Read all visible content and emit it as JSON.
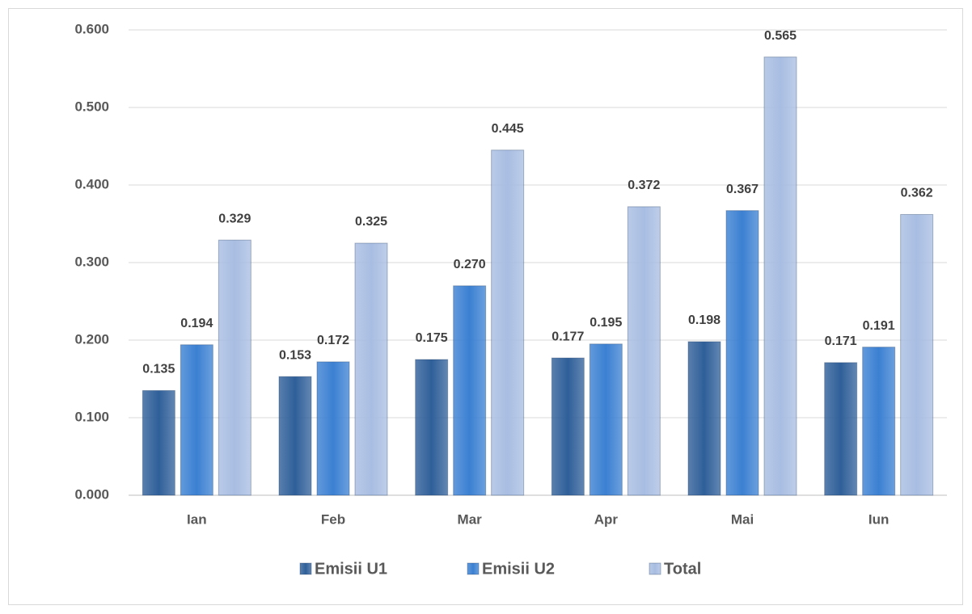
{
  "chart_data": {
    "type": "bar",
    "categories": [
      "Ian",
      "Feb",
      "Mar",
      "Apr",
      "Mai",
      "Iun"
    ],
    "series": [
      {
        "name": "Emisii U1",
        "color": "#2f5f99",
        "values": [
          0.135,
          0.153,
          0.175,
          0.177,
          0.198,
          0.171
        ],
        "value_labels": [
          "0.135",
          "0.153",
          "0.175",
          "0.177",
          "0.198",
          "0.171"
        ]
      },
      {
        "name": "Emisii U2",
        "color": "#3b80d2",
        "values": [
          0.194,
          0.172,
          0.27,
          0.195,
          0.367,
          0.191
        ],
        "value_labels": [
          "0.194",
          "0.172",
          "0.270",
          "0.195",
          "0.367",
          "0.191"
        ]
      },
      {
        "name": "Total",
        "color": "#a8bde2",
        "values": [
          0.329,
          0.325,
          0.445,
          0.372,
          0.565,
          0.362
        ],
        "value_labels": [
          "0.329",
          "0.325",
          "0.445",
          "0.372",
          "0.565",
          "0.362"
        ]
      }
    ],
    "ylim": [
      0,
      0.6
    ],
    "yticks": [
      {
        "value": 0,
        "label": "0.000"
      },
      {
        "value": 0.1,
        "label": "0.100"
      },
      {
        "value": 0.2,
        "label": "0.200"
      },
      {
        "value": 0.3,
        "label": "0.300"
      },
      {
        "value": 0.4,
        "label": "0.400"
      },
      {
        "value": 0.5,
        "label": "0.500"
      },
      {
        "value": 0.6,
        "label": "0.600"
      }
    ],
    "grid": true,
    "legend": "bottom"
  }
}
